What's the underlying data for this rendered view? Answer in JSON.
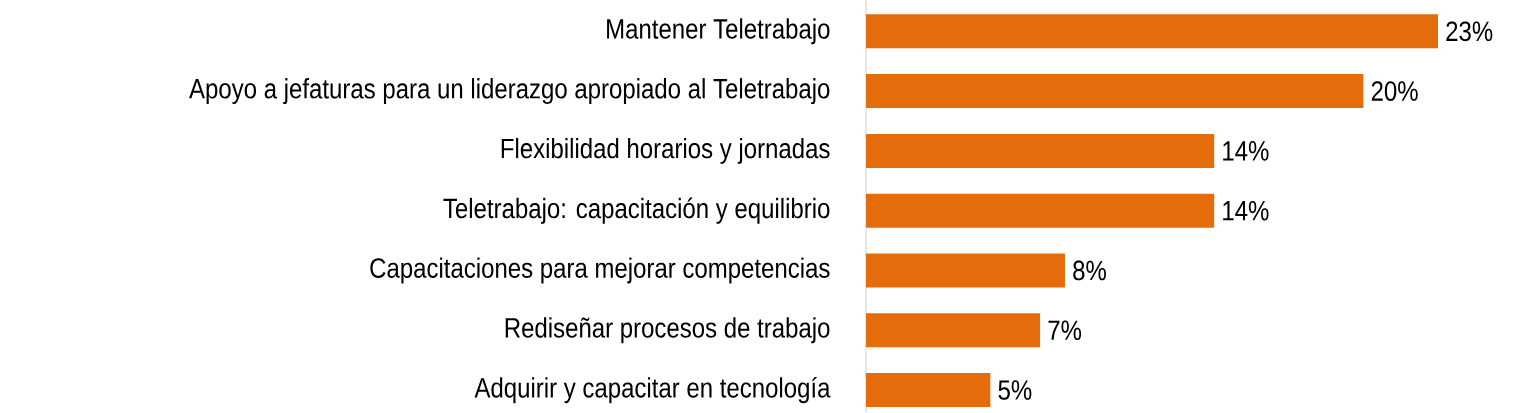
{
  "chart_data": {
    "type": "bar",
    "orientation": "horizontal",
    "categories": [
      "Mantener Teletrabajo",
      "Apoyo a jefaturas para un liderazgo apropiado al Teletrabajo",
      "Flexibilidad horarios y jornadas",
      "Teletrabajo: capacitación y equilibrio",
      "Capacitaciones para mejorar competencias",
      "Rediseñar procesos de trabajo",
      "Adquirir y capacitar en tecnología"
    ],
    "values": [
      23,
      20,
      14,
      14,
      8,
      7,
      5
    ],
    "value_labels": [
      "23%",
      "20%",
      "14%",
      "14%",
      "8%",
      "7%",
      "5%"
    ],
    "color": "#e46c0a"
  }
}
